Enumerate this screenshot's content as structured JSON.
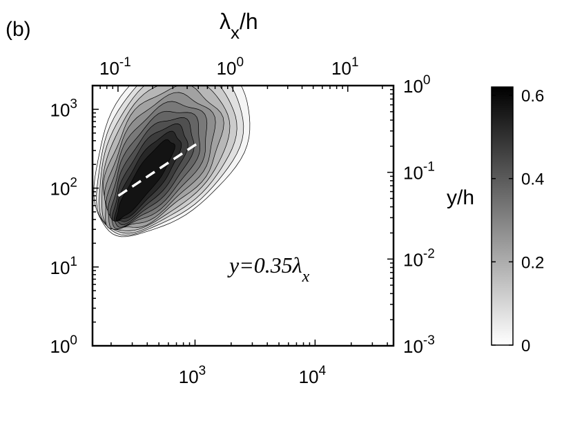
{
  "panel_label": "(b)",
  "chart_data": {
    "type": "heatmap",
    "title": "",
    "xlabel": "",
    "ylabel": "",
    "bottom_axis": {
      "scale": "log",
      "range": [
        140,
        45000
      ],
      "ticks": [
        {
          "value": 1000,
          "base": "10",
          "exp": "3"
        },
        {
          "value": 10000,
          "base": "10",
          "exp": "4"
        }
      ]
    },
    "left_axis": {
      "scale": "log",
      "range": [
        1,
        2000
      ],
      "ticks": [
        {
          "value": 1,
          "base": "10",
          "exp": "0"
        },
        {
          "value": 10,
          "base": "10",
          "exp": "1"
        },
        {
          "value": 100,
          "base": "10",
          "exp": "2"
        },
        {
          "value": 1000,
          "base": "10",
          "exp": "3"
        }
      ]
    },
    "top_axis": {
      "label_main": "λ",
      "label_sub": "x",
      "label_rest": "/h",
      "scale": "log",
      "range": [
        0.06,
        25
      ],
      "ticks": [
        {
          "value": 0.1,
          "base": "10",
          "exp": "-1"
        },
        {
          "value": 1,
          "base": "10",
          "exp": "0"
        },
        {
          "value": 10,
          "base": "10",
          "exp": "1"
        }
      ]
    },
    "right_axis": {
      "label": "y/h",
      "scale": "log",
      "range": [
        0.001,
        1
      ],
      "ticks": [
        {
          "value": 0.001,
          "base": "10",
          "exp": "-3"
        },
        {
          "value": 0.01,
          "base": "10",
          "exp": "-2"
        },
        {
          "value": 0.1,
          "base": "10",
          "exp": "-1"
        },
        {
          "value": 1,
          "base": "10",
          "exp": "0"
        }
      ]
    },
    "contour_levels": [
      0.025,
      0.075,
      0.125,
      0.175,
      0.225,
      0.275,
      0.325,
      0.375,
      0.425,
      0.475,
      0.525,
      0.575
    ],
    "annotation": {
      "text_main": "y=0.35λ",
      "text_sub": "x"
    },
    "dashed_line": {
      "x": [
        230,
        1050
      ],
      "y": [
        80,
        370
      ]
    },
    "colorbar": {
      "range": [
        0,
        0.62
      ],
      "colormap": "white-to-black",
      "ticks": [
        {
          "value": 0,
          "label": "0"
        },
        {
          "value": 0.2,
          "label": "0.2"
        },
        {
          "value": 0.4,
          "label": "0.4"
        },
        {
          "value": 0.6,
          "label": "0.6"
        }
      ]
    }
  }
}
